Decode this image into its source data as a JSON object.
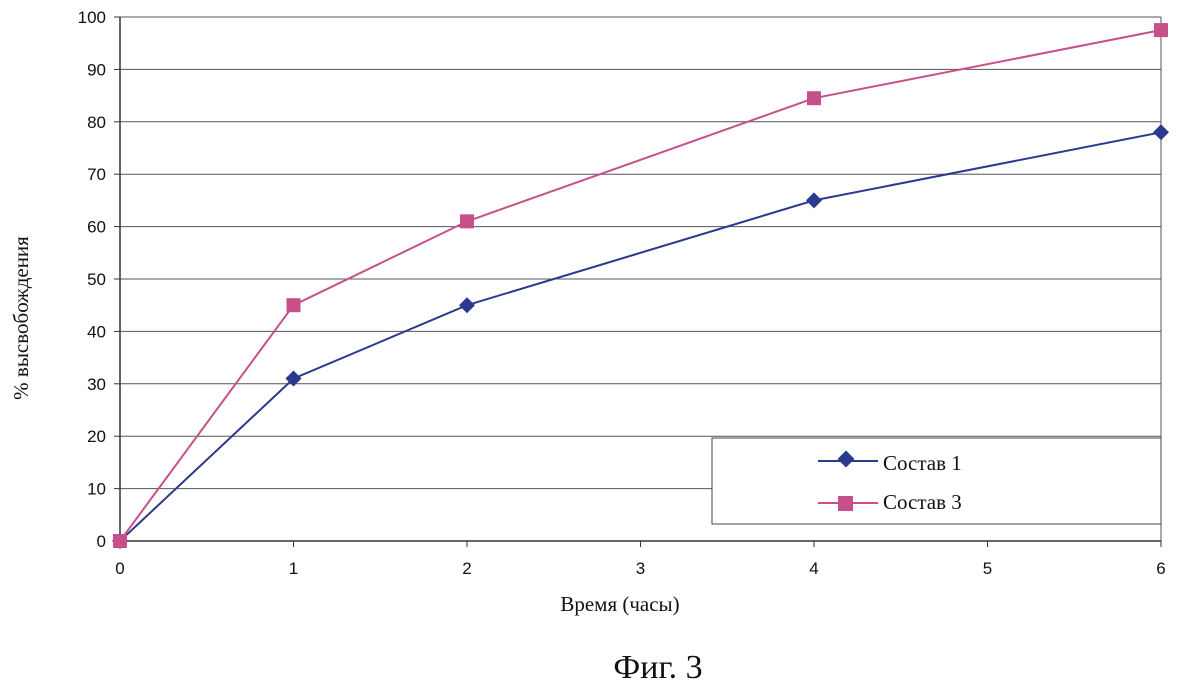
{
  "chart_data": {
    "type": "line",
    "xlabel": "Время (часы)",
    "ylabel": "% высвобождения",
    "xlim": [
      0,
      6
    ],
    "ylim": [
      0,
      100
    ],
    "x_ticks": [
      "0",
      "1",
      "2",
      "3",
      "4",
      "5",
      "6"
    ],
    "y_ticks": [
      "0",
      "10",
      "20",
      "30",
      "40",
      "50",
      "60",
      "70",
      "80",
      "90",
      "100"
    ],
    "grid": "horizontal",
    "legend_position": "bottom-right",
    "series": [
      {
        "name": "Состав 1",
        "marker": "diamond",
        "color": "#2b3a8f",
        "x": [
          0,
          1,
          2,
          4,
          6
        ],
        "y": [
          0,
          31,
          45,
          65,
          78
        ]
      },
      {
        "name": "Состав 3",
        "marker": "square",
        "color": "#c8508a",
        "x": [
          0,
          1,
          2,
          4,
          6
        ],
        "y": [
          0,
          45,
          61,
          84.5,
          97.5
        ]
      }
    ]
  },
  "caption": "Фиг. 3"
}
